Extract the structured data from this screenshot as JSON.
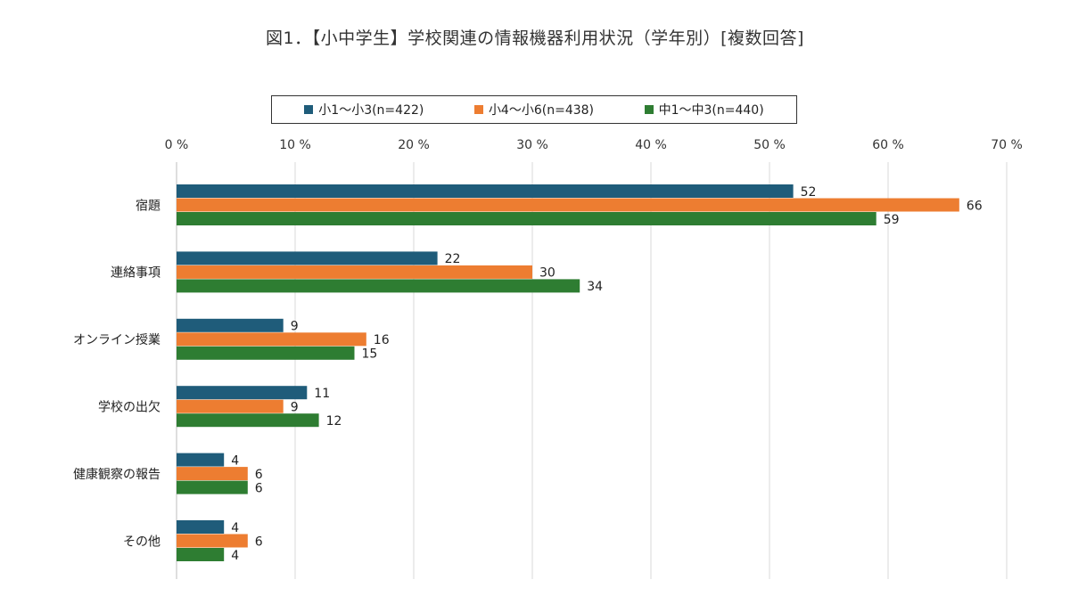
{
  "chart_data": {
    "type": "bar",
    "orientation": "horizontal",
    "title": "図1．【小中学生】学校関連の情報機器利用状況（学年別）[複数回答]",
    "categories": [
      "宿題",
      "連絡事項",
      "オンライン授業",
      "学校の出欠",
      "健康観察の報告",
      "その他"
    ],
    "series": [
      {
        "name": "小1〜小3(n=422)",
        "color": "#1f5c7a",
        "values": [
          52,
          22,
          9,
          11,
          4,
          4
        ]
      },
      {
        "name": "小4〜小6(n=438)",
        "color": "#ed7d31",
        "values": [
          66,
          30,
          16,
          9,
          6,
          6
        ]
      },
      {
        "name": "中1〜中3(n=440)",
        "color": "#2e7d32",
        "values": [
          59,
          34,
          15,
          12,
          6,
          4
        ]
      }
    ],
    "xlim": [
      0,
      70
    ],
    "x_ticks": [
      "0 %",
      "10 %",
      "20 %",
      "30 %",
      "40 %",
      "50 %",
      "60 %",
      "70 %"
    ],
    "x_tick_values": [
      0,
      10,
      20,
      30,
      40,
      50,
      60,
      70
    ],
    "legend_position": "top",
    "grid": true
  }
}
